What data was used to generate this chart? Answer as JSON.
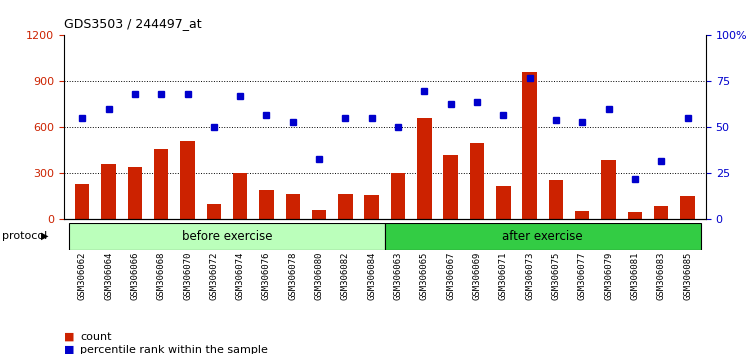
{
  "title": "GDS3503 / 244497_at",
  "samples": [
    "GSM306062",
    "GSM306064",
    "GSM306066",
    "GSM306068",
    "GSM306070",
    "GSM306072",
    "GSM306074",
    "GSM306076",
    "GSM306078",
    "GSM306080",
    "GSM306082",
    "GSM306084",
    "GSM306063",
    "GSM306065",
    "GSM306067",
    "GSM306069",
    "GSM306071",
    "GSM306073",
    "GSM306075",
    "GSM306077",
    "GSM306079",
    "GSM306081",
    "GSM306083",
    "GSM306085"
  ],
  "counts": [
    230,
    360,
    340,
    460,
    510,
    100,
    300,
    190,
    165,
    60,
    165,
    160,
    300,
    660,
    420,
    500,
    215,
    960,
    260,
    55,
    390,
    50,
    90,
    155
  ],
  "percentiles": [
    55,
    60,
    68,
    68,
    68,
    50,
    67,
    57,
    53,
    33,
    55,
    55,
    50,
    70,
    63,
    64,
    57,
    77,
    54,
    53,
    60,
    22,
    32,
    55
  ],
  "before_exercise_count": 12,
  "after_exercise_count": 12,
  "bar_color": "#cc2200",
  "dot_color": "#0000cc",
  "before_bg": "#bbffbb",
  "after_bg": "#33cc44",
  "protocol_label": "protocol",
  "before_label": "before exercise",
  "after_label": "after exercise",
  "count_legend": "count",
  "percentile_legend": "percentile rank within the sample",
  "ylim_left": [
    0,
    1200
  ],
  "ylim_right": [
    0,
    100
  ],
  "yticks_left": [
    0,
    300,
    600,
    900,
    1200
  ],
  "yticks_right": [
    0,
    25,
    50,
    75,
    100
  ],
  "grid_values": [
    300,
    600,
    900
  ]
}
